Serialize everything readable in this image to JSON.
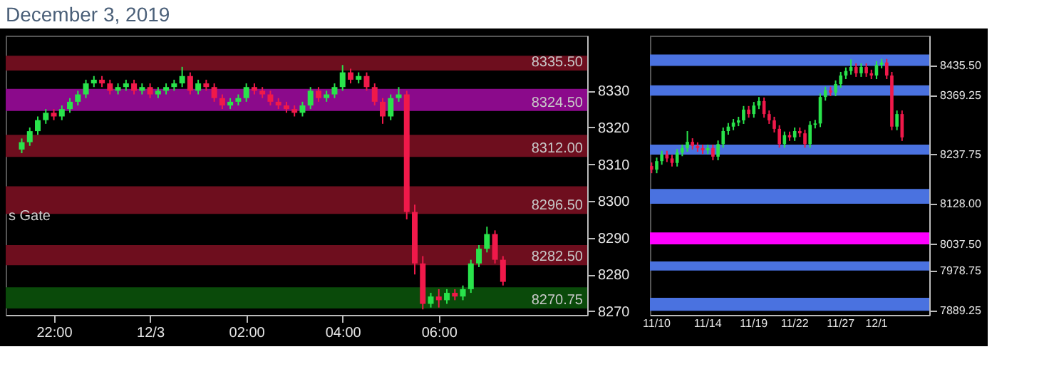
{
  "chart_data": [
    {
      "type": "candlestick",
      "title": "December 3, 2019",
      "x": [
        "2019-12-02T21:20",
        "2019-12-02T21:30",
        "2019-12-02T21:40",
        "2019-12-02T21:50",
        "2019-12-02T22:00",
        "2019-12-02T22:10",
        "2019-12-02T22:20",
        "2019-12-02T22:30",
        "2019-12-02T22:40",
        "2019-12-02T22:50",
        "2019-12-02T23:00",
        "2019-12-02T23:10",
        "2019-12-02T23:20",
        "2019-12-02T23:30",
        "2019-12-02T23:40",
        "2019-12-02T23:50",
        "2019-12-03T00:00",
        "2019-12-03T00:10",
        "2019-12-03T00:20",
        "2019-12-03T00:30",
        "2019-12-03T00:40",
        "2019-12-03T00:50",
        "2019-12-03T01:00",
        "2019-12-03T01:10",
        "2019-12-03T01:20",
        "2019-12-03T01:30",
        "2019-12-03T01:40",
        "2019-12-03T01:50",
        "2019-12-03T02:00",
        "2019-12-03T02:10",
        "2019-12-03T02:20",
        "2019-12-03T02:30",
        "2019-12-03T02:40",
        "2019-12-03T02:50",
        "2019-12-03T03:00",
        "2019-12-03T03:10",
        "2019-12-03T03:20",
        "2019-12-03T03:30",
        "2019-12-03T03:40",
        "2019-12-03T03:50",
        "2019-12-03T04:00",
        "2019-12-03T04:10",
        "2019-12-03T04:20",
        "2019-12-03T04:30",
        "2019-12-03T04:40",
        "2019-12-03T04:50",
        "2019-12-03T05:00",
        "2019-12-03T05:10",
        "2019-12-03T05:20",
        "2019-12-03T05:30",
        "2019-12-03T05:40",
        "2019-12-03T05:50",
        "2019-12-03T06:00",
        "2019-12-03T06:10",
        "2019-12-03T06:20",
        "2019-12-03T06:30",
        "2019-12-03T06:40",
        "2019-12-03T06:50",
        "2019-12-03T07:00",
        "2019-12-03T07:10",
        "2019-12-03T07:20"
      ],
      "ohlc": [
        [
          8314,
          8317,
          8313,
          8316
        ],
        [
          8316,
          8320,
          8315,
          8319
        ],
        [
          8319,
          8323,
          8318,
          8322
        ],
        [
          8322,
          8325,
          8321,
          8324
        ],
        [
          8324,
          8325,
          8322,
          8323
        ],
        [
          8323,
          8326,
          8322,
          8325
        ],
        [
          8325,
          8328,
          8324,
          8327
        ],
        [
          8327,
          8330,
          8326,
          8329
        ],
        [
          8329,
          8333,
          8328,
          8332
        ],
        [
          8332,
          8334,
          8331,
          8333
        ],
        [
          8333,
          8334,
          8331,
          8332
        ],
        [
          8332,
          8333,
          8329,
          8330
        ],
        [
          8330,
          8332,
          8329,
          8331
        ],
        [
          8331,
          8333,
          8330,
          8332
        ],
        [
          8332,
          8333,
          8329,
          8330
        ],
        [
          8330,
          8332,
          8329,
          8331
        ],
        [
          8331,
          8332,
          8328,
          8329
        ],
        [
          8329,
          8331,
          8328,
          8330
        ],
        [
          8330,
          8332,
          8329,
          8331
        ],
        [
          8331,
          8333,
          8330,
          8332
        ],
        [
          8332,
          8336.5,
          8331,
          8334
        ],
        [
          8334,
          8335,
          8329,
          8330
        ],
        [
          8330,
          8333,
          8329,
          8332
        ],
        [
          8332,
          8333,
          8330,
          8331
        ],
        [
          8331,
          8332,
          8327,
          8328
        ],
        [
          8328,
          8329,
          8325,
          8326
        ],
        [
          8326,
          8328,
          8325,
          8327
        ],
        [
          8327,
          8329,
          8326,
          8328
        ],
        [
          8328,
          8332,
          8327,
          8331
        ],
        [
          8331,
          8332,
          8329,
          8330
        ],
        [
          8330,
          8331,
          8328,
          8329
        ],
        [
          8329,
          8330,
          8326,
          8327
        ],
        [
          8327,
          8328,
          8325,
          8326
        ],
        [
          8326,
          8327,
          8324,
          8325
        ],
        [
          8325,
          8326,
          8323,
          8324
        ],
        [
          8324,
          8327,
          8323,
          8326
        ],
        [
          8326,
          8331,
          8325,
          8330
        ],
        [
          8330,
          8331,
          8327,
          8328
        ],
        [
          8328,
          8330,
          8327,
          8329
        ],
        [
          8329,
          8332,
          8328,
          8331
        ],
        [
          8331,
          8337,
          8330,
          8335
        ],
        [
          8335,
          8336,
          8332,
          8333
        ],
        [
          8333,
          8335,
          8332,
          8334
        ],
        [
          8334,
          8335,
          8330,
          8331
        ],
        [
          8331,
          8332,
          8326,
          8327
        ],
        [
          8327,
          8328,
          8321,
          8323
        ],
        [
          8323,
          8329,
          8322,
          8328
        ],
        [
          8328,
          8331,
          8327,
          8329
        ],
        [
          8329,
          8330,
          8295,
          8297
        ],
        [
          8297,
          8299,
          8280,
          8283
        ],
        [
          8283,
          8285,
          8270.5,
          8272
        ],
        [
          8272,
          8275,
          8271,
          8274
        ],
        [
          8274,
          8276,
          8271,
          8273
        ],
        [
          8273,
          8276,
          8272,
          8275
        ],
        [
          8275,
          8276,
          8273,
          8274
        ],
        [
          8274,
          8277,
          8273,
          8276
        ],
        [
          8276,
          8284,
          8275,
          8283
        ],
        [
          8283,
          8288,
          8282,
          8287
        ],
        [
          8287,
          8293,
          8286,
          8291
        ],
        [
          8291,
          8292,
          8283,
          8284
        ],
        [
          8284,
          8285,
          8277,
          8278
        ]
      ],
      "colors": [
        "#29e34b",
        "#29e34b",
        "#29e34b",
        "#29e34b",
        "#f0194a",
        "#29e34b",
        "#29e34b",
        "#29e34b",
        "#29e34b",
        "#29e34b",
        "#f0194a",
        "#f0194a",
        "#29e34b",
        "#29e34b",
        "#f0194a",
        "#29e34b",
        "#f0194a",
        "#29e34b",
        "#29e34b",
        "#29e34b",
        "#29e34b",
        "#f0194a",
        "#29e34b",
        "#f0194a",
        "#f0194a",
        "#f0194a",
        "#29e34b",
        "#29e34b",
        "#29e34b",
        "#f0194a",
        "#f0194a",
        "#f0194a",
        "#f0194a",
        "#f0194a",
        "#f0194a",
        "#29e34b",
        "#29e34b",
        "#f0194a",
        "#29e34b",
        "#29e34b",
        "#29e34b",
        "#f0194a",
        "#29e34b",
        "#f0194a",
        "#f0194a",
        "#f0194a",
        "#29e34b",
        "#29e34b",
        "#f0194a",
        "#f0194a",
        "#f0194a",
        "#29e34b",
        "#f0194a",
        "#29e34b",
        "#f0194a",
        "#29e34b",
        "#29e34b",
        "#29e34b",
        "#29e34b",
        "#f0194a",
        "#f0194a"
      ],
      "xlim": [
        "2019-12-02T21:00",
        "2019-12-03T09:05"
      ],
      "xticks": [
        {
          "value": "2019-12-02T22:00",
          "label": "22:00"
        },
        {
          "value": "2019-12-03T00:00",
          "label": "12/3"
        },
        {
          "value": "2019-12-03T02:00",
          "label": "02:00"
        },
        {
          "value": "2019-12-03T04:00",
          "label": "04:00"
        },
        {
          "value": "2019-12-03T06:00",
          "label": "06:00"
        }
      ],
      "ylim": [
        8269,
        8345
      ],
      "yticks": [
        8270,
        8280,
        8290,
        8300,
        8310,
        8320,
        8330
      ],
      "bands": [
        {
          "axis": "y",
          "from": 8335.5,
          "to": 8339.5,
          "label": "8335.50",
          "color": "#6e0e1e"
        },
        {
          "axis": "y",
          "from": 8324.5,
          "to": 8330.5,
          "label": "8324.50",
          "color": "#8b0a8b"
        },
        {
          "axis": "y",
          "from": 8312,
          "to": 8318,
          "label": "8312.00",
          "color": "#6e0e1e"
        },
        {
          "axis": "y",
          "from": 8296.5,
          "to": 8304,
          "label": "8296.50",
          "color": "#6e0e1e"
        },
        {
          "axis": "y",
          "from": 8282.5,
          "to": 8288,
          "label": "8282.50",
          "color": "#6e0e1e"
        },
        {
          "axis": "y",
          "from": 8270.75,
          "to": 8276.5,
          "label": "8270.75",
          "color": "#0a4a0a"
        }
      ],
      "annotations": [
        {
          "text": "s Gate",
          "x": "2019-12-02T21:00",
          "y": 8296
        }
      ]
    },
    {
      "type": "candlestick",
      "categories": [
        null,
        "11/10",
        null,
        null,
        null,
        null,
        null,
        null,
        null,
        null,
        null,
        "11/14",
        null,
        null,
        null,
        null,
        null,
        null,
        null,
        null,
        "11/19",
        null,
        null,
        null,
        null,
        null,
        null,
        null,
        "11/22",
        null,
        null,
        null,
        null,
        null,
        null,
        null,
        null,
        "11/27",
        null,
        null,
        null,
        null,
        null,
        null,
        "12/1",
        null,
        null,
        null,
        null,
        null,
        null,
        null,
        null,
        null,
        null
      ],
      "ohlc": [
        [
          8212,
          8220,
          8196,
          8204
        ],
        [
          8204,
          8231,
          8196,
          8223
        ],
        [
          8223,
          8246,
          8215,
          8238
        ],
        [
          8238,
          8246,
          8221,
          8229
        ],
        [
          8229,
          8237,
          8211,
          8219
        ],
        [
          8219,
          8250,
          8211,
          8242
        ],
        [
          8242,
          8260,
          8234,
          8252
        ],
        [
          8252,
          8290,
          8244,
          8266
        ],
        [
          8266,
          8274,
          8249,
          8257
        ],
        [
          8257,
          8265,
          8244,
          8252
        ],
        [
          8252,
          8260,
          8239,
          8247
        ],
        [
          8247,
          8260,
          8239,
          8252
        ],
        [
          8252,
          8260,
          8225,
          8233
        ],
        [
          8233,
          8269,
          8225,
          8261
        ],
        [
          8261,
          8298,
          8253,
          8290
        ],
        [
          8290,
          8308,
          8282,
          8300
        ],
        [
          8300,
          8317,
          8292,
          8309
        ],
        [
          8309,
          8322,
          8301,
          8314
        ],
        [
          8314,
          8346,
          8306,
          8338
        ],
        [
          8338,
          8346,
          8320,
          8328
        ],
        [
          8328,
          8355,
          8320,
          8347
        ],
        [
          8347,
          8366,
          8339,
          8357
        ],
        [
          8357,
          8365,
          8320,
          8328
        ],
        [
          8328,
          8336,
          8306,
          8314
        ],
        [
          8314,
          8322,
          8287,
          8295
        ],
        [
          8295,
          8303,
          8253,
          8261
        ],
        [
          8261,
          8289,
          8253,
          8281
        ],
        [
          8281,
          8289,
          8268,
          8276
        ],
        [
          8276,
          8298,
          8268,
          8290
        ],
        [
          8290,
          8298,
          8277,
          8285
        ],
        [
          8285,
          8293,
          8253,
          8261
        ],
        [
          8261,
          8312,
          8253,
          8304
        ],
        [
          8304,
          8315,
          8296,
          8307
        ],
        [
          8307,
          8374,
          8299,
          8366
        ],
        [
          8366,
          8389,
          8358,
          8381
        ],
        [
          8381,
          8389,
          8368,
          8376
        ],
        [
          8376,
          8403,
          8368,
          8395
        ],
        [
          8395,
          8422,
          8387,
          8414
        ],
        [
          8414,
          8432,
          8406,
          8424
        ],
        [
          8424,
          8450,
          8416,
          8433
        ],
        [
          8433,
          8441,
          8411,
          8419
        ],
        [
          8419,
          8441,
          8411,
          8433
        ],
        [
          8433,
          8441,
          8411,
          8419
        ],
        [
          8419,
          8427,
          8406,
          8414
        ],
        [
          8414,
          8446,
          8406,
          8438
        ],
        [
          8438,
          8451,
          8430,
          8443
        ],
        [
          8443,
          8451,
          8406,
          8414
        ],
        [
          8414,
          8422,
          8292,
          8300
        ],
        [
          8300,
          8336,
          8292,
          8328
        ],
        [
          8328,
          8336,
          8268,
          8276
        ],
        null,
        null,
        null,
        null,
        null
      ],
      "colors": [
        "#f0194a",
        "#29e34b",
        "#29e34b",
        "#f0194a",
        "#f0194a",
        "#29e34b",
        "#29e34b",
        "#29e34b",
        "#f0194a",
        "#f0194a",
        "#f0194a",
        "#29e34b",
        "#f0194a",
        "#29e34b",
        "#29e34b",
        "#29e34b",
        "#29e34b",
        "#29e34b",
        "#29e34b",
        "#f0194a",
        "#29e34b",
        "#29e34b",
        "#f0194a",
        "#f0194a",
        "#f0194a",
        "#f0194a",
        "#29e34b",
        "#f0194a",
        "#29e34b",
        "#f0194a",
        "#f0194a",
        "#29e34b",
        "#29e34b",
        "#29e34b",
        "#29e34b",
        "#f0194a",
        "#29e34b",
        "#29e34b",
        "#29e34b",
        "#29e34b",
        "#f0194a",
        "#29e34b",
        "#f0194a",
        "#f0194a",
        "#29e34b",
        "#29e34b",
        "#f0194a",
        "#f0194a",
        "#29e34b",
        "#f0194a",
        null,
        null,
        null,
        null,
        null
      ],
      "ylim": [
        7880,
        8503
      ],
      "yticks": [
        {
          "value": 8435.5,
          "label": "8435.50"
        },
        {
          "value": 8369.25,
          "label": "8369.25"
        },
        {
          "value": 8237.75,
          "label": "8237.75"
        },
        {
          "value": 8128,
          "label": "8128.00"
        },
        {
          "value": 8037.5,
          "label": "8037.50"
        },
        {
          "value": 7978.75,
          "label": "7978.75"
        },
        {
          "value": 7889.25,
          "label": "7889.25"
        }
      ],
      "bands": [
        {
          "axis": "y",
          "from": 8435.5,
          "to": 8461,
          "color": "#4a72e0"
        },
        {
          "axis": "y",
          "from": 8369.25,
          "to": 8392,
          "color": "#4a72e0"
        },
        {
          "axis": "y",
          "from": 8237.75,
          "to": 8260,
          "color": "#4a72e0"
        },
        {
          "axis": "y",
          "from": 8128,
          "to": 8161,
          "color": "#4a72e0"
        },
        {
          "axis": "y",
          "from": 8037.5,
          "to": 8064,
          "color": "#ff00ff"
        },
        {
          "axis": "y",
          "from": 7978.75,
          "to": 7999,
          "color": "#4a72e0"
        },
        {
          "axis": "y",
          "from": 7889.25,
          "to": 7918,
          "color": "#4a72e0"
        }
      ]
    }
  ]
}
